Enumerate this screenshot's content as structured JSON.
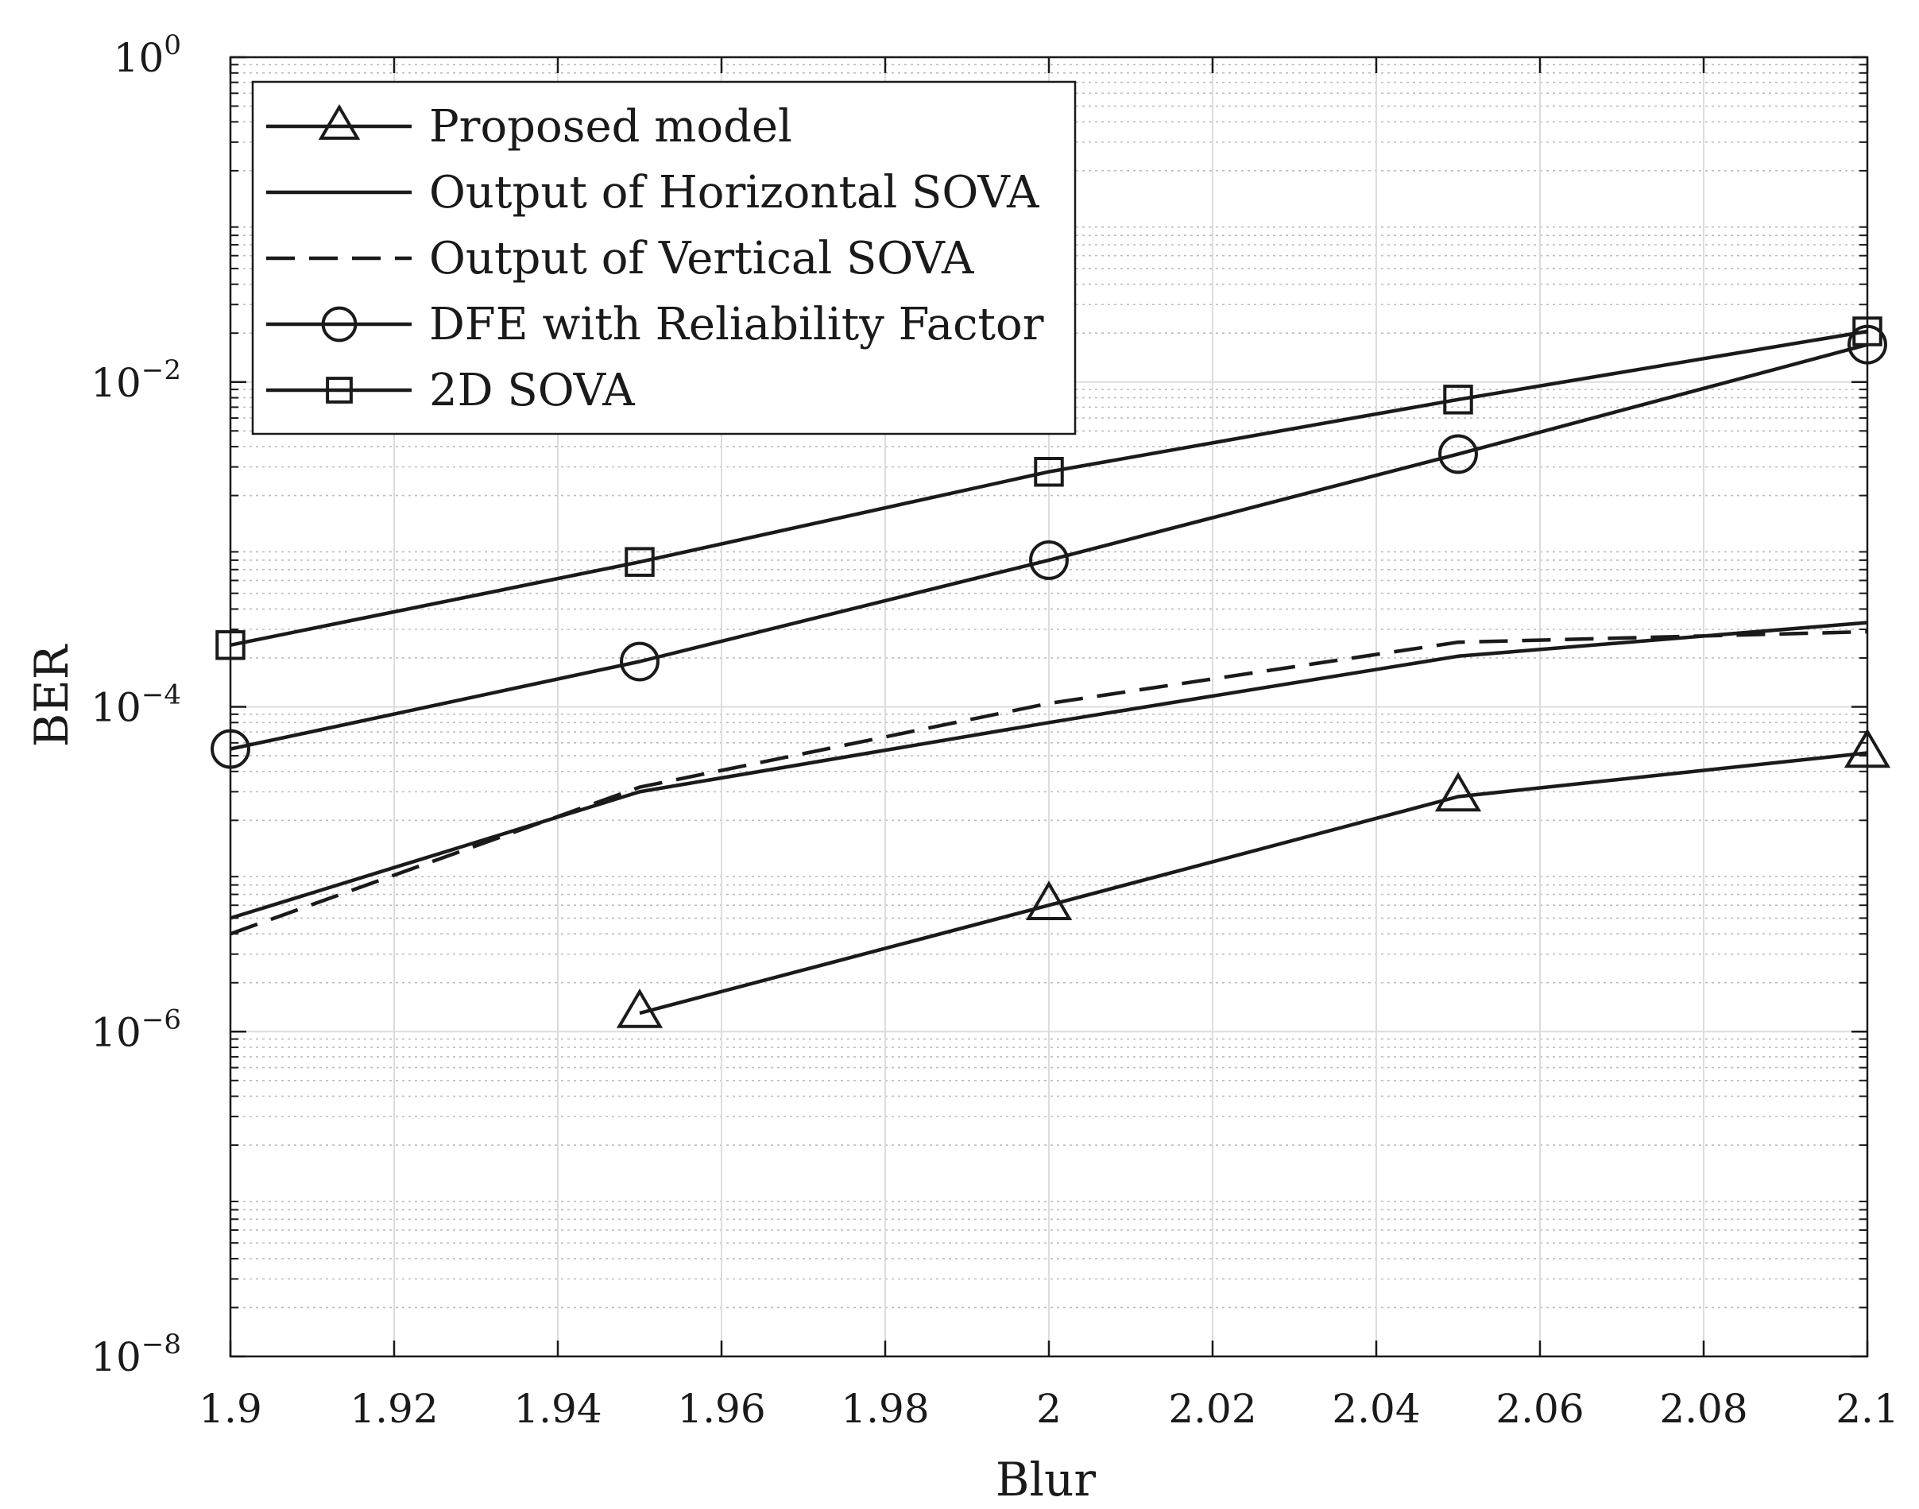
{
  "chart_data": {
    "type": "line",
    "title": "",
    "xlabel": "Blur",
    "ylabel": "BER",
    "xlim": [
      1.9,
      2.1
    ],
    "ylim": [
      1e-08,
      1
    ],
    "yscale": "log",
    "grid": true,
    "legend_position": "top-left",
    "x_ticks": [
      1.9,
      1.92,
      1.94,
      1.96,
      1.98,
      2,
      2.02,
      2.04,
      2.06,
      2.08,
      2.1
    ],
    "x_tick_labels": [
      "1.9",
      "1.92",
      "1.94",
      "1.96",
      "1.98",
      "2",
      "2.02",
      "2.04",
      "2.06",
      "2.08",
      "2.1"
    ],
    "y_ticks": [
      {
        "exp": -8,
        "base": "10",
        "sup": "−8"
      },
      {
        "exp": -6,
        "base": "10",
        "sup": "−6"
      },
      {
        "exp": -4,
        "base": "10",
        "sup": "−4"
      },
      {
        "exp": -2,
        "base": "10",
        "sup": "−2"
      },
      {
        "exp": 0,
        "base": "10",
        "sup": "0"
      }
    ],
    "series": [
      {
        "name": "Proposed model",
        "marker": "triangle",
        "dash": "solid",
        "color": "#1a1a1a",
        "x": [
          1.95,
          2.0,
          2.05,
          2.1
        ],
        "y": [
          1.3e-06,
          6e-06,
          2.8e-05,
          5.2e-05
        ]
      },
      {
        "name": "Output of Horizontal SOVA",
        "marker": "none",
        "dash": "solid",
        "color": "#1a1a1a",
        "x": [
          1.9,
          1.95,
          2.0,
          2.05,
          2.1
        ],
        "y": [
          5e-06,
          3e-05,
          8e-05,
          0.000205,
          0.00033
        ]
      },
      {
        "name": "Output of Vertical SOVA",
        "marker": "none",
        "dash": "dashed",
        "color": "#1a1a1a",
        "x": [
          1.9,
          1.95,
          2.0,
          2.05,
          2.1
        ],
        "y": [
          4e-06,
          3.2e-05,
          0.000105,
          0.00025,
          0.00029
        ]
      },
      {
        "name": "DFE with Reliability Factor",
        "marker": "circle",
        "dash": "solid",
        "color": "#1a1a1a",
        "x": [
          1.9,
          1.95,
          2.0,
          2.05,
          2.1
        ],
        "y": [
          5.5e-05,
          0.00019,
          0.0008,
          0.0036,
          0.017
        ]
      },
      {
        "name": "2D SOVA",
        "marker": "square",
        "dash": "solid",
        "color": "#1a1a1a",
        "x": [
          1.9,
          1.95,
          2.0,
          2.05,
          2.1
        ],
        "y": [
          0.00024,
          0.00078,
          0.0028,
          0.0078,
          0.0205
        ]
      }
    ]
  }
}
